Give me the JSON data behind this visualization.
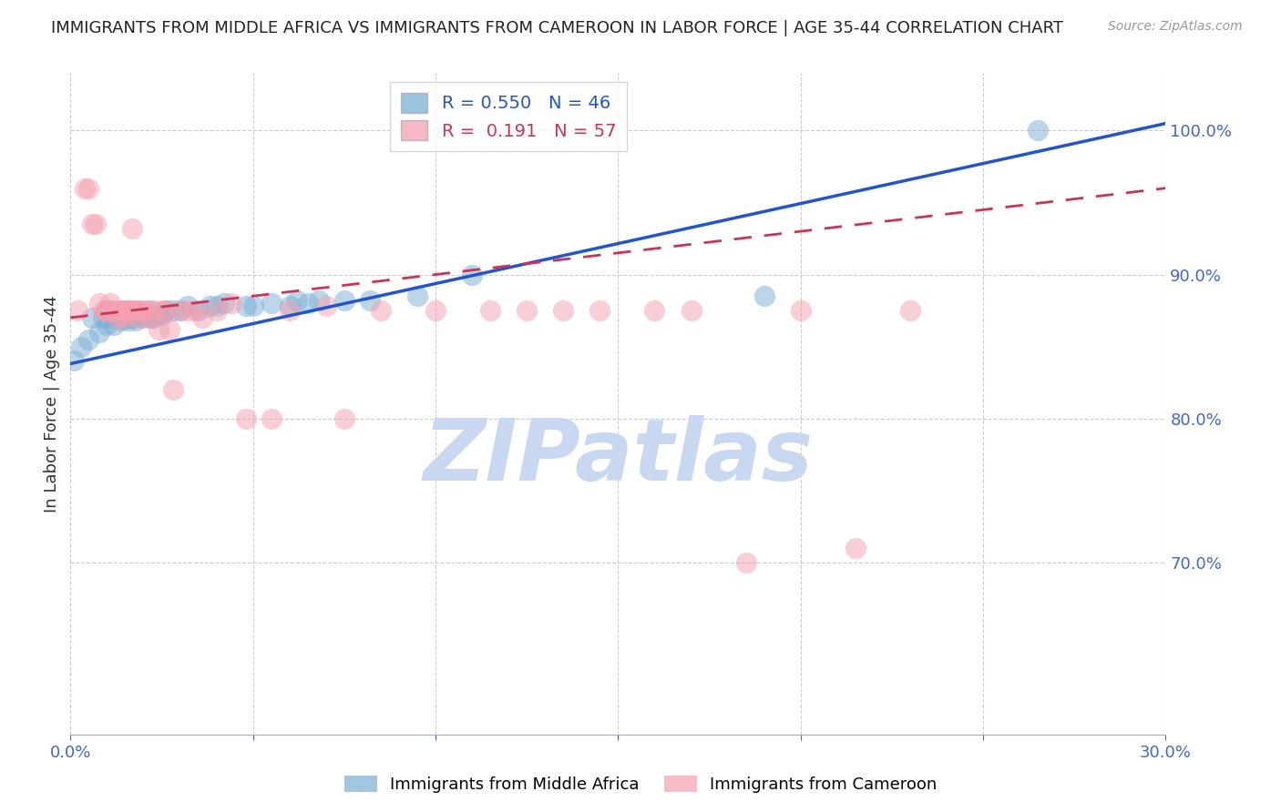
{
  "title": "IMMIGRANTS FROM MIDDLE AFRICA VS IMMIGRANTS FROM CAMEROON IN LABOR FORCE | AGE 35-44 CORRELATION CHART",
  "source": "Source: ZipAtlas.com",
  "ylabel": "In Labor Force | Age 35-44",
  "xlim": [
    0.0,
    0.3
  ],
  "ylim": [
    0.58,
    1.04
  ],
  "yticks": [
    0.7,
    0.8,
    0.9,
    1.0
  ],
  "ytick_labels": [
    "70.0%",
    "80.0%",
    "90.0%",
    "100.0%"
  ],
  "xticks": [
    0.0,
    0.05,
    0.1,
    0.15,
    0.2,
    0.25,
    0.3
  ],
  "xtick_labels": [
    "0.0%",
    "",
    "",
    "",
    "",
    "",
    "30.0%"
  ],
  "blue_R": 0.55,
  "blue_N": 46,
  "pink_R": 0.191,
  "pink_N": 57,
  "blue_color": "#7bafd4",
  "pink_color": "#f4a0b0",
  "trend_blue_color": "#2255cc",
  "trend_pink_color": "#cc3355",
  "watermark_color": "#c8d8f0",
  "axis_color": "#4466cc",
  "grid_color": "#cccccc",
  "title_color": "#222222",
  "blue_x": [
    0.001,
    0.003,
    0.005,
    0.006,
    0.008,
    0.009,
    0.01,
    0.01,
    0.011,
    0.012,
    0.013,
    0.014,
    0.015,
    0.015,
    0.016,
    0.017,
    0.018,
    0.019,
    0.02,
    0.021,
    0.022,
    0.022,
    0.023,
    0.024,
    0.025,
    0.026,
    0.028,
    0.03,
    0.032,
    0.035,
    0.038,
    0.04,
    0.042,
    0.048,
    0.05,
    0.055,
    0.06,
    0.062,
    0.065,
    0.068,
    0.075,
    0.082,
    0.095,
    0.11,
    0.19,
    0.265
  ],
  "blue_y": [
    0.84,
    0.85,
    0.855,
    0.87,
    0.86,
    0.87,
    0.865,
    0.875,
    0.87,
    0.865,
    0.872,
    0.868,
    0.87,
    0.875,
    0.868,
    0.87,
    0.868,
    0.872,
    0.87,
    0.872,
    0.87,
    0.875,
    0.87,
    0.872,
    0.872,
    0.875,
    0.875,
    0.875,
    0.878,
    0.875,
    0.878,
    0.878,
    0.88,
    0.878,
    0.878,
    0.88,
    0.878,
    0.882,
    0.88,
    0.882,
    0.882,
    0.882,
    0.885,
    0.9,
    0.885,
    1.0
  ],
  "pink_x": [
    0.002,
    0.004,
    0.005,
    0.006,
    0.007,
    0.008,
    0.009,
    0.01,
    0.01,
    0.011,
    0.011,
    0.012,
    0.013,
    0.013,
    0.014,
    0.015,
    0.015,
    0.016,
    0.016,
    0.017,
    0.017,
    0.018,
    0.018,
    0.019,
    0.019,
    0.02,
    0.021,
    0.022,
    0.023,
    0.024,
    0.025,
    0.026,
    0.027,
    0.028,
    0.03,
    0.032,
    0.034,
    0.036,
    0.04,
    0.044,
    0.048,
    0.055,
    0.06,
    0.07,
    0.075,
    0.085,
    0.1,
    0.115,
    0.125,
    0.135,
    0.145,
    0.16,
    0.17,
    0.185,
    0.2,
    0.215,
    0.23
  ],
  "pink_y": [
    0.875,
    0.96,
    0.96,
    0.935,
    0.935,
    0.88,
    0.875,
    0.875,
    0.875,
    0.875,
    0.88,
    0.875,
    0.87,
    0.875,
    0.875,
    0.87,
    0.875,
    0.875,
    0.875,
    0.932,
    0.875,
    0.875,
    0.875,
    0.875,
    0.87,
    0.875,
    0.875,
    0.87,
    0.875,
    0.862,
    0.875,
    0.875,
    0.862,
    0.82,
    0.875,
    0.875,
    0.875,
    0.87,
    0.875,
    0.88,
    0.8,
    0.8,
    0.875,
    0.878,
    0.8,
    0.875,
    0.875,
    0.875,
    0.875,
    0.875,
    0.875,
    0.875,
    0.875,
    0.7,
    0.875,
    0.71,
    0.875
  ],
  "blue_trend_x0": 0.0,
  "blue_trend_y0": 0.838,
  "blue_trend_x1": 0.3,
  "blue_trend_y1": 1.005,
  "pink_trend_x0": 0.0,
  "pink_trend_y0": 0.87,
  "pink_trend_x1": 0.3,
  "pink_trend_y1": 0.96
}
